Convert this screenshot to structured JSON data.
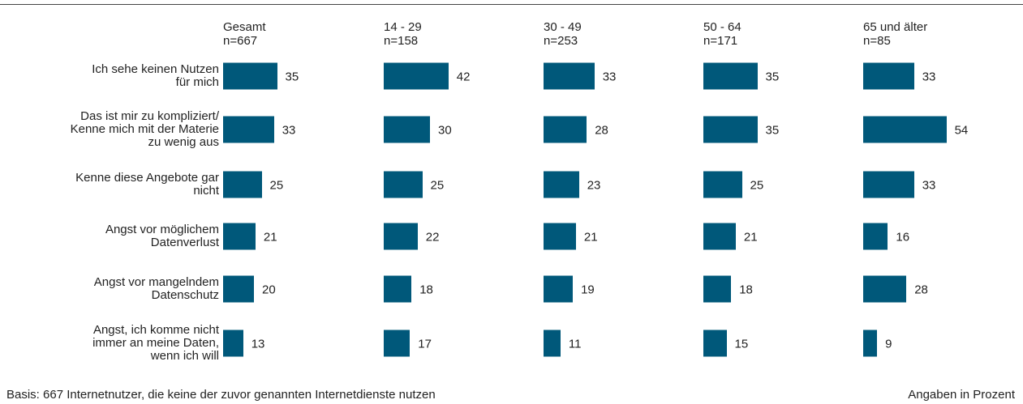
{
  "chart_data": {
    "type": "bar",
    "orientation": "horizontal",
    "categories": [
      "Ich sehe keinen Nutzen\nfür mich",
      "Das ist mir zu kompliziert/\nKenne mich mit der Materie\nzu wenig aus",
      "Kenne diese Angebote gar\nnicht",
      "Angst vor möglichem\nDatenverlust",
      "Angst vor mangelndem\nDatenschutz",
      "Angst, ich komme nicht\nimmer an meine Daten,\nwenn ich will"
    ],
    "series": [
      {
        "name": "Gesamt",
        "subtitle": "n=667",
        "color": "#00587a",
        "values": [
          35,
          33,
          25,
          21,
          20,
          13
        ]
      },
      {
        "name": "14 - 29",
        "subtitle": "n=158",
        "color": "#00587a",
        "values": [
          42,
          30,
          25,
          22,
          18,
          17
        ]
      },
      {
        "name": "30 - 49",
        "subtitle": "n=253",
        "color": "#00587a",
        "values": [
          33,
          28,
          23,
          21,
          19,
          11
        ]
      },
      {
        "name": "50 - 64",
        "subtitle": "n=171",
        "color": "#00587a",
        "values": [
          35,
          35,
          25,
          21,
          18,
          15
        ]
      },
      {
        "name": "65 und älter",
        "subtitle": "n=85",
        "color": "#00587a",
        "values": [
          33,
          54,
          33,
          16,
          28,
          9
        ]
      }
    ],
    "footnote": "Basis: 667 Internetnutzer, die keine der zuvor genannten Internetdienste nutzen",
    "unit_note": "Angaben in Prozent"
  }
}
